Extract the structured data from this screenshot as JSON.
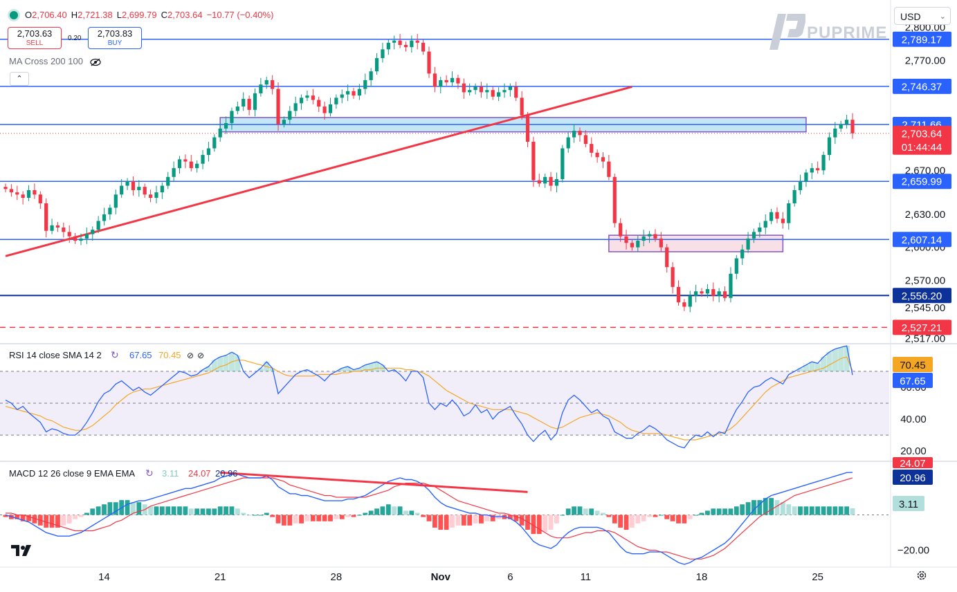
{
  "header": {
    "ohlc": [
      {
        "k": "O",
        "v": "2,706.40"
      },
      {
        "k": "H",
        "v": "2,721.38"
      },
      {
        "k": "L",
        "v": "2,699.79"
      },
      {
        "k": "C",
        "v": "2,703.64"
      }
    ],
    "change": "−10.77 (−0.40%)",
    "sell_price": "2,703.63",
    "sell_label": "SELL",
    "buy_price": "2,703.83",
    "buy_label": "BUY",
    "spread": "0.20",
    "ma_label": "MA Cross 200 100",
    "currency": "USD",
    "brand": "PUPRIME"
  },
  "colors": {
    "up": "#089981",
    "down": "#f23645",
    "level": "#2962ff",
    "dark_level": "#0c3299",
    "trend": "#f23645",
    "zone_blue": "#b7e1f2",
    "zone_pink": "#f8d7e0",
    "zone_border": "#7e57c2",
    "rsi": "#2962ff",
    "rsi_ma": "#f5a623",
    "macd": "#2962ff",
    "signal": "#f23645"
  },
  "chart_data": [
    {
      "type": "candlestick",
      "title": "",
      "price_axis_ticks": [
        "2,800.00",
        "2,770.00",
        "2,670.00",
        "2,630.00",
        "2,600.00",
        "2,570.00",
        "2,545.00",
        "2,517.00"
      ],
      "ylim": [
        2513,
        2806
      ],
      "x_ticks": [
        {
          "label": "14",
          "i": 17
        },
        {
          "label": "21",
          "i": 37
        },
        {
          "label": "28",
          "i": 57
        },
        {
          "label": "Nov",
          "i": 75
        },
        {
          "label": "6",
          "i": 87
        },
        {
          "label": "11",
          "i": 100
        },
        {
          "label": "18",
          "i": 120
        },
        {
          "label": "25",
          "i": 140
        }
      ],
      "horizontal_levels": [
        {
          "label": "2,789.17",
          "value": 2789.17,
          "style": "solid",
          "color": "#2962ff"
        },
        {
          "label": "2,746.37",
          "value": 2746.37,
          "style": "solid",
          "color": "#2962ff"
        },
        {
          "label": "2,711.66",
          "value": 2711.66,
          "style": "solid",
          "color": "#2962ff"
        },
        {
          "label": "2,659.99",
          "value": 2659.99,
          "style": "solid",
          "color": "#2962ff"
        },
        {
          "label": "2,607.14",
          "value": 2607.14,
          "style": "solid",
          "color": "#2962ff"
        },
        {
          "label": "2,556.20",
          "value": 2556.2,
          "style": "solid",
          "color": "#0c3299"
        },
        {
          "label": "2,527.21",
          "value": 2527.21,
          "style": "dashed",
          "color": "#f23645"
        }
      ],
      "last_price": {
        "label": "2,703.64",
        "value": 2703.64,
        "countdown": "01:44:44"
      },
      "zones": [
        {
          "name": "resistance-zone",
          "i0": 37,
          "i1": 138,
          "top": 2718,
          "bottom": 2705,
          "fill": "#b7e1f2"
        },
        {
          "name": "support-zone",
          "i0": 104,
          "i1": 134,
          "top": 2611,
          "bottom": 2596,
          "fill": "#f8d7e0"
        }
      ],
      "trendline": {
        "start": {
          "i": 0,
          "value": 2592
        },
        "end": {
          "i": 108,
          "value": 2746
        }
      },
      "close": [
        2653,
        2650,
        2648,
        2645,
        2652,
        2648,
        2640,
        2615,
        2620,
        2618,
        2614,
        2610,
        2606,
        2608,
        2612,
        2616,
        2624,
        2630,
        2636,
        2648,
        2656,
        2660,
        2652,
        2655,
        2648,
        2645,
        2650,
        2656,
        2664,
        2672,
        2680,
        2678,
        2672,
        2676,
        2684,
        2690,
        2700,
        2708,
        2713,
        2724,
        2728,
        2735,
        2725,
        2740,
        2748,
        2752,
        2744,
        2712,
        2716,
        2724,
        2731,
        2736,
        2738,
        2734,
        2728,
        2722,
        2730,
        2736,
        2739,
        2742,
        2738,
        2744,
        2752,
        2760,
        2772,
        2780,
        2786,
        2788,
        2784,
        2782,
        2788,
        2786,
        2778,
        2758,
        2746,
        2752,
        2750,
        2754,
        2749,
        2741,
        2743,
        2746,
        2741,
        2743,
        2737,
        2741,
        2743,
        2746,
        2736,
        2720,
        2696,
        2661,
        2658,
        2664,
        2656,
        2662,
        2690,
        2700,
        2706,
        2702,
        2694,
        2686,
        2682,
        2678,
        2664,
        2622,
        2610,
        2604,
        2600,
        2606,
        2610,
        2612,
        2608,
        2600,
        2582,
        2564,
        2550,
        2546,
        2556,
        2560,
        2558,
        2562,
        2556,
        2560,
        2554,
        2576,
        2590,
        2598,
        2608,
        2614,
        2618,
        2624,
        2632,
        2626,
        2622,
        2640,
        2652,
        2660,
        2668,
        2672,
        2670,
        2684,
        2700,
        2708,
        2712,
        2716,
        2703.64
      ]
    },
    {
      "type": "line",
      "title": "RSI 14 close SMA 14 2",
      "series_values": {
        "rsi": "67.65",
        "sma": "70.45"
      },
      "ylim": [
        14,
        86
      ],
      "ticks": [
        "60.00",
        "40.00",
        "20.00"
      ],
      "bands": {
        "upper": 70,
        "middle": 50,
        "lower": 30
      },
      "series": [
        {
          "name": "RSI",
          "values": [
            52,
            50,
            46,
            48,
            44,
            41,
            38,
            32,
            34,
            33,
            31,
            30,
            30,
            33,
            38,
            44,
            51,
            56,
            58,
            62,
            64,
            61,
            58,
            60,
            57,
            55,
            58,
            61,
            64,
            67,
            70,
            69,
            67,
            68,
            71,
            73,
            77,
            79,
            80,
            82,
            80,
            70,
            66,
            69,
            72,
            76,
            72,
            56,
            60,
            64,
            68,
            70,
            71,
            69,
            67,
            64,
            68,
            70,
            72,
            73,
            71,
            72,
            74,
            75,
            76,
            74,
            70,
            71,
            68,
            64,
            70,
            70,
            66,
            50,
            46,
            50,
            48,
            52,
            48,
            42,
            44,
            49,
            44,
            46,
            40,
            44,
            46,
            48,
            42,
            37,
            30,
            26,
            30,
            33,
            27,
            31,
            44,
            52,
            55,
            52,
            48,
            44,
            46,
            42,
            40,
            32,
            30,
            28,
            28,
            31,
            33,
            36,
            34,
            31,
            27,
            25,
            23,
            22,
            27,
            30,
            29,
            32,
            29,
            32,
            31,
            39,
            46,
            51,
            57,
            60,
            61,
            64,
            66,
            64,
            62,
            68,
            70,
            72,
            74,
            76,
            75,
            79,
            82,
            84,
            85,
            86,
            67.65
          ]
        },
        {
          "name": "SMA",
          "values": [
            48,
            47,
            46,
            45,
            44,
            43,
            42,
            40,
            39,
            37,
            35,
            34,
            33,
            33,
            34,
            36,
            39,
            42,
            45,
            49,
            52,
            55,
            57,
            58,
            59,
            59,
            60,
            61,
            62,
            63,
            64,
            65,
            66,
            67,
            68,
            69,
            71,
            73,
            74,
            76,
            77,
            77,
            76,
            75,
            74,
            73,
            72,
            70,
            68,
            67,
            67,
            67,
            67,
            67,
            68,
            68,
            68,
            68,
            69,
            69,
            70,
            70,
            71,
            71,
            72,
            72,
            72,
            72,
            72,
            71,
            71,
            70,
            69,
            67,
            64,
            61,
            58,
            56,
            54,
            52,
            50,
            49,
            48,
            47,
            46,
            46,
            46,
            46,
            45,
            44,
            43,
            41,
            39,
            37,
            35,
            34,
            35,
            37,
            39,
            41,
            42,
            43,
            44,
            43,
            42,
            40,
            38,
            35,
            33,
            32,
            31,
            31,
            31,
            31,
            30,
            29,
            28,
            27,
            27,
            27,
            28,
            29,
            30,
            31,
            32,
            34,
            37,
            41,
            45,
            49,
            53,
            57,
            60,
            62,
            64,
            66,
            67,
            68,
            69,
            70,
            71,
            72,
            74,
            76,
            78,
            79,
            70.45
          ]
        }
      ]
    },
    {
      "type": "line",
      "title": "MACD 12 26 close 9 EMA EMA",
      "series_values": {
        "histogram": "3.11",
        "macd": "24.07",
        "signal": "20.96"
      },
      "ylim": [
        -28,
        30
      ],
      "ticks": [
        "−20.00"
      ],
      "last_labels": [
        "24.07",
        "20.96",
        "3.11"
      ],
      "series": [
        {
          "name": "MACD",
          "values": [
            0,
            -1,
            -2,
            -3,
            -4,
            -6,
            -8,
            -10,
            -11,
            -12,
            -12,
            -12,
            -11,
            -10,
            -8,
            -6,
            -4,
            -2,
            0,
            2,
            4,
            6,
            7,
            8,
            8,
            9,
            10,
            11,
            12,
            13,
            14,
            15,
            15,
            16,
            17,
            18,
            19,
            21,
            22,
            23,
            23,
            22,
            21,
            21,
            21,
            22,
            20,
            16,
            14,
            12,
            12,
            11,
            11,
            10,
            9,
            8,
            8,
            8,
            8,
            9,
            9,
            10,
            11,
            13,
            15,
            17,
            19,
            20,
            21,
            20,
            20,
            19,
            17,
            14,
            10,
            7,
            5,
            4,
            3,
            2,
            1,
            1,
            0,
            0,
            -1,
            -1,
            -1,
            -2,
            -4,
            -7,
            -11,
            -15,
            -17,
            -18,
            -19,
            -17,
            -13,
            -10,
            -8,
            -7,
            -7,
            -7,
            -7,
            -8,
            -10,
            -14,
            -18,
            -21,
            -22,
            -22,
            -22,
            -21,
            -21,
            -21,
            -23,
            -25,
            -27,
            -28,
            -27,
            -25,
            -24,
            -22,
            -20,
            -18,
            -16,
            -13,
            -9,
            -5,
            -1,
            3,
            6,
            9,
            11,
            12,
            13,
            14,
            15,
            16,
            17,
            18,
            19,
            20,
            21,
            22,
            23,
            24,
            24.07
          ]
        },
        {
          "name": "Signal",
          "values": [
            1,
            1,
            0,
            0,
            -1,
            -2,
            -3,
            -4,
            -5,
            -6,
            -7,
            -8,
            -9,
            -9,
            -9,
            -9,
            -8,
            -7,
            -6,
            -4,
            -3,
            -1,
            1,
            2,
            3,
            5,
            6,
            7,
            8,
            9,
            10,
            11,
            12,
            13,
            14,
            15,
            16,
            17,
            18,
            19,
            20,
            21,
            21,
            21,
            21,
            21,
            21,
            20,
            19,
            17,
            16,
            15,
            14,
            13,
            12,
            11,
            11,
            10,
            10,
            10,
            10,
            10,
            10,
            11,
            12,
            13,
            14,
            16,
            17,
            18,
            18,
            18,
            18,
            17,
            16,
            14,
            12,
            10,
            8,
            7,
            6,
            5,
            4,
            3,
            2,
            1,
            1,
            0,
            -1,
            -2,
            -4,
            -6,
            -8,
            -10,
            -12,
            -13,
            -13,
            -13,
            -12,
            -11,
            -10,
            -10,
            -9,
            -9,
            -9,
            -10,
            -12,
            -14,
            -16,
            -18,
            -19,
            -20,
            -20,
            -21,
            -21,
            -22,
            -23,
            -24,
            -25,
            -25,
            -25,
            -24,
            -23,
            -21,
            -19,
            -16,
            -13,
            -10,
            -7,
            -4,
            -1,
            1,
            3,
            5,
            7,
            9,
            11,
            12,
            13,
            14,
            15,
            16,
            17,
            18,
            19,
            20,
            20.96
          ]
        }
      ],
      "divergence_line": {
        "start": {
          "i": 37,
          "value": 24
        },
        "end": {
          "i": 90,
          "value": 13
        }
      }
    }
  ]
}
